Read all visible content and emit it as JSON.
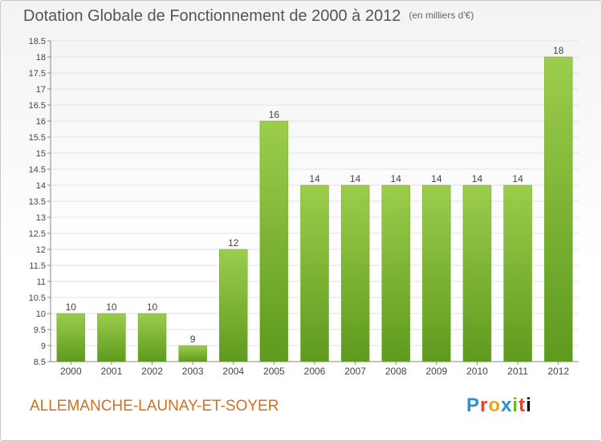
{
  "header": {
    "title": "Dotation Globale de Fonctionnement de 2000 à 2012",
    "unit": "(en milliers d'€)"
  },
  "footer": {
    "commune": "ALLEMANCHE-LAUNAY-ET-SOYER",
    "logo": [
      "P",
      "r",
      "o",
      "x",
      "i",
      "t",
      "i"
    ]
  },
  "colors": {
    "bar": "#8cc63f",
    "bar_dark": "#5e9a1e",
    "commune_text": "#d2701c"
  },
  "chart_data": {
    "type": "bar",
    "title": "Dotation Globale de Fonctionnement de 2000 à 2012",
    "subtitle": "(en milliers d'€)",
    "categories": [
      "2000",
      "2001",
      "2002",
      "2003",
      "2004",
      "2005",
      "2006",
      "2007",
      "2008",
      "2009",
      "2010",
      "2011",
      "2012"
    ],
    "values": [
      10,
      10,
      10,
      9,
      12,
      16,
      14,
      14,
      14,
      14,
      14,
      14,
      18
    ],
    "ylim": [
      8.5,
      18.5
    ],
    "yticks": [
      "8.5",
      "9",
      "9.5",
      "10",
      "10.5",
      "11",
      "11.5",
      "12",
      "12.5",
      "13",
      "13.5",
      "14",
      "14.5",
      "15",
      "15.5",
      "16",
      "16.5",
      "17",
      "17.5",
      "18",
      "18.5"
    ],
    "grid": true
  }
}
